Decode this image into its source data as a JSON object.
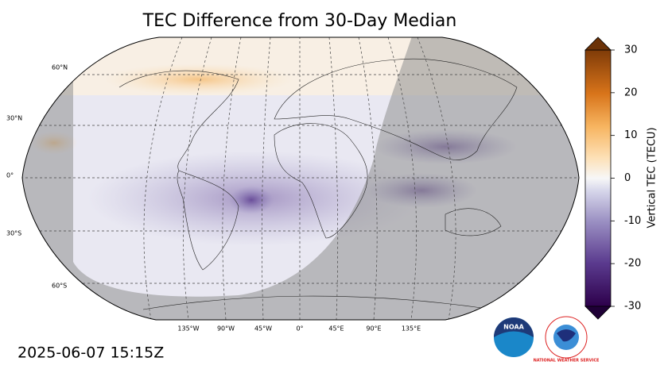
{
  "title": "TEC Difference from 30-Day Median",
  "timestamp": "2025-06-07 15:15Z",
  "map": {
    "lat_labels": [
      "60°N",
      "30°N",
      "0°",
      "30°S",
      "60°S"
    ],
    "lon_labels": [
      "135°W",
      "90°W",
      "45°W",
      "0°",
      "45°E",
      "90°E",
      "135°E"
    ]
  },
  "colorbar": {
    "label": "Vertical TEC (TECU)",
    "lim": [
      -30,
      30
    ],
    "ticks": [
      -30,
      -20,
      -10,
      0,
      10,
      20,
      30
    ]
  },
  "logos": {
    "noaa": "NOAA",
    "nws": "NATIONAL WEATHER SERVICE"
  }
}
